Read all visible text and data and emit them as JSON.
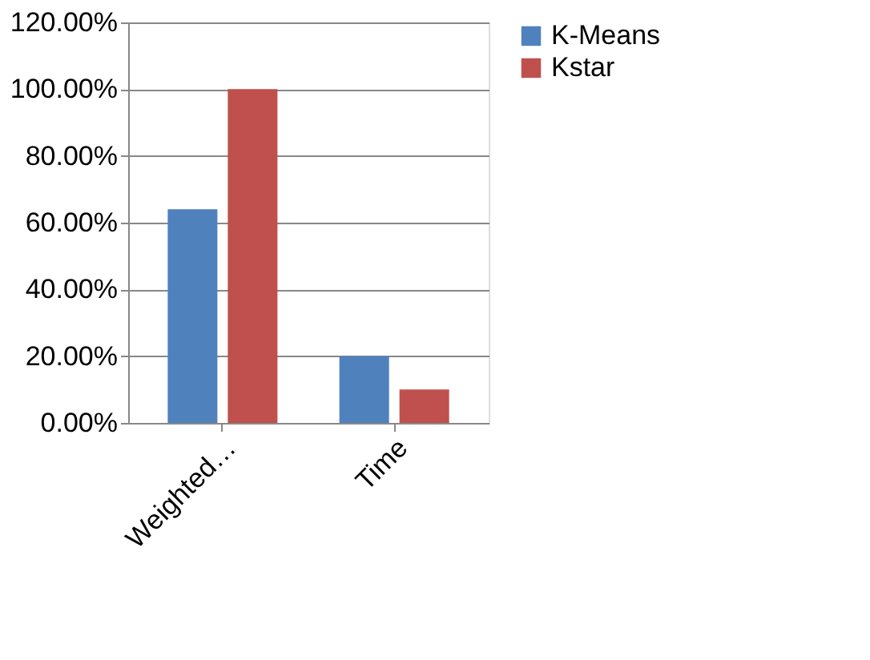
{
  "chart_data": {
    "type": "bar",
    "categories": [
      "Weighted…",
      "Time"
    ],
    "series": [
      {
        "name": "K-Means",
        "color": "#4f81bd",
        "values": [
          64,
          20
        ]
      },
      {
        "name": "Kstar",
        "color": "#c0504d",
        "values": [
          100,
          10
        ]
      }
    ],
    "ylim": [
      0,
      120
    ],
    "yticks": [
      {
        "value": 0,
        "label": "0.00%"
      },
      {
        "value": 20,
        "label": "20.00%"
      },
      {
        "value": 40,
        "label": "40.00%"
      },
      {
        "value": 60,
        "label": "60.00%"
      },
      {
        "value": 80,
        "label": "80.00%"
      },
      {
        "value": 100,
        "label": "100.00%"
      },
      {
        "value": 120,
        "label": "120.00%"
      }
    ],
    "grid": "y",
    "legend": "right"
  }
}
